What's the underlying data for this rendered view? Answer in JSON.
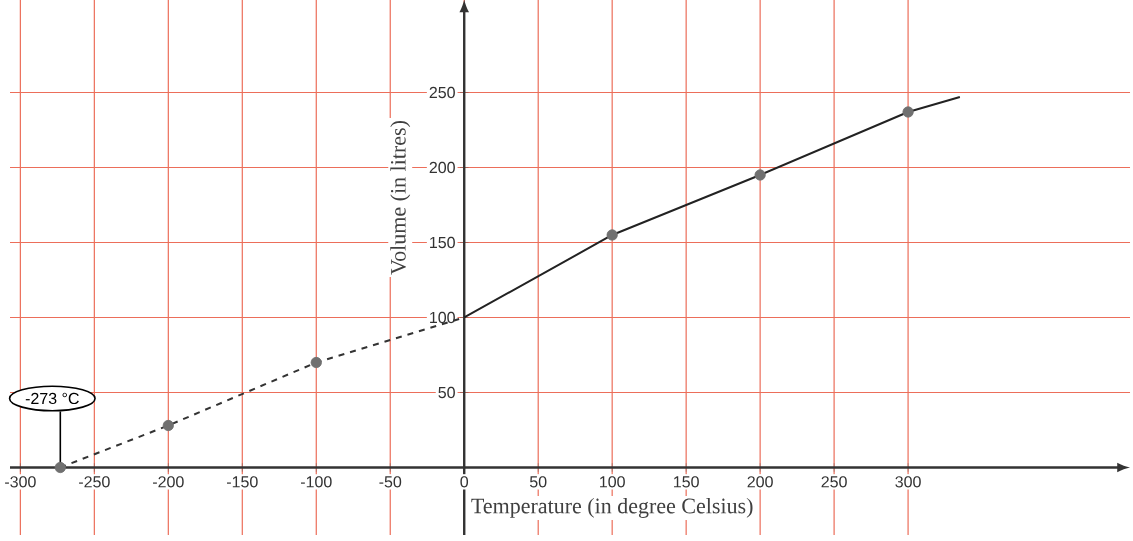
{
  "chart_data": {
    "type": "line",
    "xlabel": "Temperature (in degree Celsius)",
    "ylabel": "Volume (in litres)",
    "xlim": [
      -307,
      450
    ],
    "ylim": [
      -45,
      312
    ],
    "xticks": [
      -300,
      -250,
      -200,
      -150,
      -100,
      -50,
      0,
      50,
      100,
      150,
      200,
      250,
      300
    ],
    "yticks": [
      50,
      100,
      150,
      200,
      250
    ],
    "grid": true,
    "series": [
      {
        "line_style": "dashed",
        "marker": "none",
        "color": "#333333",
        "x": [
          -273,
          -200,
          -100,
          0
        ],
        "values": [
          0,
          28,
          70,
          100
        ]
      },
      {
        "line_style": "solid",
        "marker": "none",
        "color": "#222222",
        "x": [
          0,
          100,
          200,
          300,
          335
        ],
        "values": [
          100,
          155,
          195,
          237,
          247
        ]
      },
      {
        "type": "scatter",
        "marker": "circle",
        "color": "#707070",
        "x": [
          -273,
          -200,
          -100,
          100,
          200,
          300
        ],
        "values": [
          0,
          28,
          70,
          155,
          195,
          237
        ]
      }
    ],
    "annotations": [
      {
        "text": "-273 °C",
        "x": -273,
        "y": 0
      }
    ]
  }
}
